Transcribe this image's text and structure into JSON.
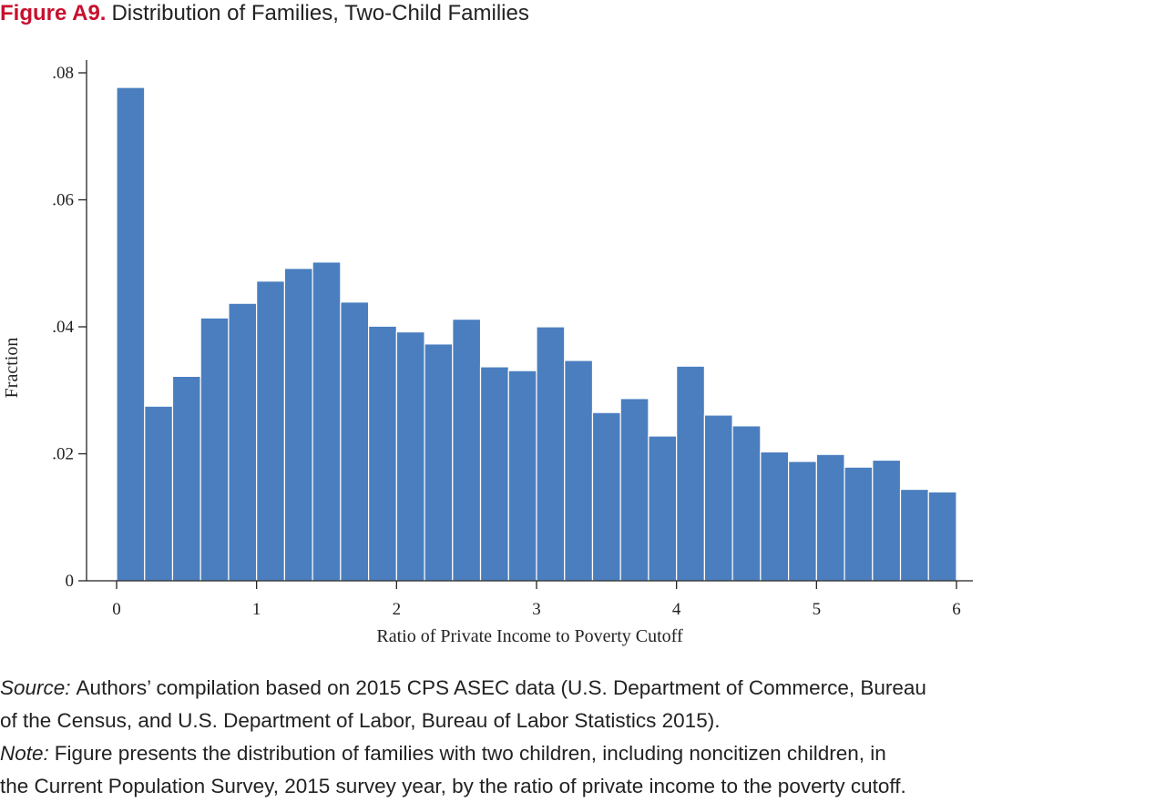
{
  "figure": {
    "number": "Figure A9.",
    "title": "Distribution of Families, Two-Child Families",
    "number_color": "#c8102e"
  },
  "chart_data": {
    "type": "bar",
    "subtype": "histogram",
    "xlabel": "Ratio of Private Income to Poverty Cutoff",
    "ylabel": "Fraction",
    "xlim": [
      0,
      6
    ],
    "ylim": [
      0,
      0.08
    ],
    "bin_width": 0.2,
    "xticks": [
      0,
      1,
      2,
      3,
      4,
      5,
      6
    ],
    "xtick_labels": [
      "0",
      "1",
      "2",
      "3",
      "4",
      "5",
      "6"
    ],
    "yticks": [
      0,
      0.02,
      0.04,
      0.06,
      0.08
    ],
    "ytick_labels": [
      "0",
      ".02",
      ".04",
      ".06",
      ".08"
    ],
    "bin_starts": [
      0,
      0.2,
      0.4,
      0.6,
      0.8,
      1.0,
      1.2,
      1.4,
      1.6,
      1.8,
      2.0,
      2.2,
      2.4,
      2.6,
      2.8,
      3.0,
      3.2,
      3.4,
      3.6,
      3.8,
      4.0,
      4.2,
      4.4,
      4.6,
      4.8,
      5.0,
      5.2,
      5.4,
      5.6,
      5.8
    ],
    "values": [
      0.0777,
      0.0275,
      0.0322,
      0.0414,
      0.0437,
      0.0472,
      0.0492,
      0.0502,
      0.0439,
      0.0401,
      0.0392,
      0.0373,
      0.0412,
      0.0337,
      0.0331,
      0.04,
      0.0347,
      0.0265,
      0.0287,
      0.0228,
      0.0338,
      0.0261,
      0.0244,
      0.0203,
      0.0188,
      0.0199,
      0.0179,
      0.019,
      0.0144,
      0.014
    ],
    "bar_color": "#4a7ebf",
    "grid": false,
    "legend": "none"
  },
  "notes": {
    "source_label": "Source:",
    "source_line1": "Authors’ compilation based on 2015 CPS ASEC data (U.S. Department of Commerce, Bureau",
    "source_line2": "of the Census, and U.S. Department of Labor, Bureau of Labor Statistics 2015).",
    "note_label": "Note:",
    "note_line1": "Figure presents the distribution of families with two children, including noncitizen children, in",
    "note_line2": "the Current Population Survey, 2015 survey year, by the ratio of private income to the poverty cutoff."
  }
}
